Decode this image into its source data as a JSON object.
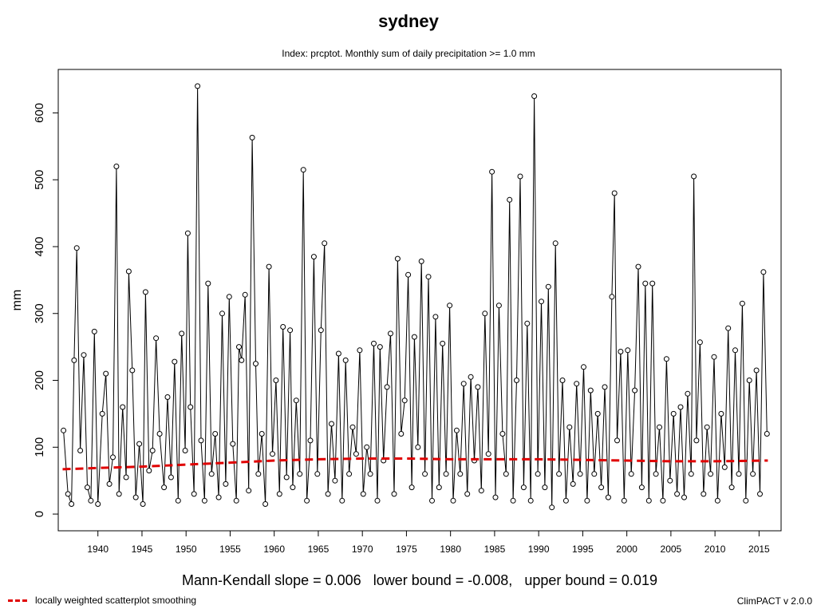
{
  "chart_data": {
    "type": "line",
    "title": "sydney",
    "subtitle": "Index: prcptot. Monthly sum of daily precipitation >= 1.0 mm",
    "ylabel": "mm",
    "xlabel": "",
    "xlim": [
      1935.5,
      2017.5
    ],
    "ylim": [
      -25,
      665
    ],
    "x_ticks": [
      1940,
      1945,
      1950,
      1955,
      1960,
      1965,
      1970,
      1975,
      1980,
      1985,
      1990,
      1995,
      2000,
      2005,
      2010,
      2015
    ],
    "y_ticks": [
      0,
      100,
      200,
      300,
      400,
      500,
      600
    ],
    "grid": false,
    "series": [
      {
        "style": "line-with-open-circles",
        "color": "#000000",
        "x": [
          1936.1,
          1936.6,
          1937.0,
          1937.3,
          1937.6,
          1938.0,
          1938.4,
          1938.8,
          1939.2,
          1939.6,
          1940.0,
          1940.5,
          1940.9,
          1941.3,
          1941.7,
          1942.1,
          1942.4,
          1942.8,
          1943.2,
          1943.5,
          1943.9,
          1944.3,
          1944.7,
          1945.1,
          1945.4,
          1945.8,
          1946.2,
          1946.6,
          1947.0,
          1947.5,
          1947.9,
          1948.3,
          1948.7,
          1949.1,
          1949.5,
          1949.9,
          1950.2,
          1950.5,
          1950.9,
          1951.3,
          1951.7,
          1952.1,
          1952.5,
          1952.9,
          1953.3,
          1953.7,
          1954.1,
          1954.5,
          1954.9,
          1955.3,
          1955.7,
          1956.0,
          1956.3,
          1956.7,
          1957.1,
          1957.5,
          1957.9,
          1958.2,
          1958.6,
          1959.0,
          1959.4,
          1959.8,
          1960.2,
          1960.6,
          1961.0,
          1961.4,
          1961.8,
          1962.1,
          1962.5,
          1962.9,
          1963.3,
          1963.7,
          1964.1,
          1964.5,
          1964.9,
          1965.3,
          1965.7,
          1966.1,
          1966.5,
          1966.9,
          1967.3,
          1967.7,
          1968.1,
          1968.5,
          1968.9,
          1969.3,
          1969.7,
          1970.1,
          1970.5,
          1970.9,
          1971.3,
          1971.7,
          1972.0,
          1972.4,
          1972.8,
          1973.2,
          1973.6,
          1974.0,
          1974.4,
          1974.8,
          1975.2,
          1975.6,
          1975.9,
          1976.3,
          1976.7,
          1977.1,
          1977.5,
          1977.9,
          1978.3,
          1978.7,
          1979.1,
          1979.5,
          1979.9,
          1980.3,
          1980.7,
          1981.1,
          1981.5,
          1981.9,
          1982.3,
          1982.7,
          1983.1,
          1983.5,
          1983.9,
          1984.3,
          1984.7,
          1985.1,
          1985.5,
          1985.9,
          1986.3,
          1986.7,
          1987.1,
          1987.5,
          1987.9,
          1988.3,
          1988.7,
          1989.1,
          1989.5,
          1989.9,
          1990.3,
          1990.7,
          1991.1,
          1991.5,
          1991.9,
          1992.3,
          1992.7,
          1993.1,
          1993.5,
          1993.9,
          1994.3,
          1994.7,
          1995.1,
          1995.5,
          1995.9,
          1996.3,
          1996.7,
          1997.1,
          1997.5,
          1997.9,
          1998.3,
          1998.6,
          1998.9,
          1999.3,
          1999.7,
          2000.1,
          2000.5,
          2000.9,
          2001.3,
          2001.7,
          2002.1,
          2002.5,
          2002.9,
          2003.3,
          2003.7,
          2004.1,
          2004.5,
          2004.9,
          2005.3,
          2005.7,
          2006.1,
          2006.5,
          2006.9,
          2007.3,
          2007.6,
          2007.9,
          2008.3,
          2008.7,
          2009.1,
          2009.5,
          2009.9,
          2010.3,
          2010.7,
          2011.1,
          2011.5,
          2011.9,
          2012.3,
          2012.7,
          2013.1,
          2013.5,
          2013.9,
          2014.3,
          2014.7,
          2015.1,
          2015.5,
          2015.9
        ],
        "y": [
          125,
          30,
          15,
          230,
          398,
          95,
          238,
          40,
          20,
          273,
          15,
          150,
          210,
          45,
          85,
          520,
          30,
          160,
          55,
          363,
          215,
          25,
          105,
          15,
          332,
          65,
          95,
          263,
          120,
          40,
          175,
          55,
          228,
          20,
          270,
          95,
          420,
          160,
          30,
          640,
          110,
          20,
          345,
          60,
          120,
          25,
          300,
          45,
          325,
          105,
          20,
          250,
          230,
          328,
          35,
          563,
          225,
          60,
          120,
          15,
          370,
          90,
          200,
          30,
          280,
          55,
          275,
          40,
          170,
          60,
          515,
          20,
          110,
          385,
          60,
          275,
          405,
          30,
          135,
          50,
          240,
          20,
          230,
          60,
          130,
          90,
          245,
          30,
          100,
          60,
          255,
          20,
          250,
          80,
          190,
          270,
          30,
          382,
          120,
          170,
          358,
          40,
          265,
          100,
          378,
          60,
          355,
          20,
          295,
          40,
          255,
          60,
          312,
          20,
          125,
          60,
          195,
          30,
          205,
          80,
          190,
          35,
          300,
          90,
          512,
          25,
          312,
          120,
          60,
          470,
          20,
          200,
          505,
          40,
          285,
          20,
          625,
          60,
          318,
          40,
          340,
          10,
          405,
          60,
          200,
          20,
          130,
          45,
          195,
          60,
          220,
          20,
          185,
          60,
          150,
          40,
          190,
          25,
          325,
          480,
          110,
          243,
          20,
          245,
          60,
          185,
          370,
          40,
          345,
          20,
          345,
          60,
          130,
          20,
          232,
          50,
          150,
          30,
          160,
          25,
          180,
          60,
          505,
          110,
          257,
          30,
          130,
          60,
          235,
          20,
          150,
          70,
          278,
          40,
          245,
          60,
          315,
          20,
          200,
          60,
          215,
          30,
          362,
          120
        ]
      },
      {
        "name": "locally weighted scatterplot smoothing",
        "style": "dashed",
        "color": "#e00000",
        "x": [
          1936,
          1940,
          1945,
          1950,
          1955,
          1960,
          1965,
          1970,
          1975,
          1980,
          1985,
          1990,
          1995,
          2000,
          2005,
          2010,
          2016
        ],
        "y": [
          67,
          69,
          71,
          74,
          77,
          80,
          82,
          83,
          83,
          82,
          82,
          82,
          81,
          80,
          79,
          79,
          80
        ]
      }
    ],
    "legend": {
      "placement": "bottom-left",
      "label": "locally weighted scatterplot smoothing"
    }
  },
  "stats_text": "Mann-Kendall slope = 0.006   lower bound = -0.008,   upper bound = 0.019",
  "version_text": "ClimPACT v 2.0.0"
}
